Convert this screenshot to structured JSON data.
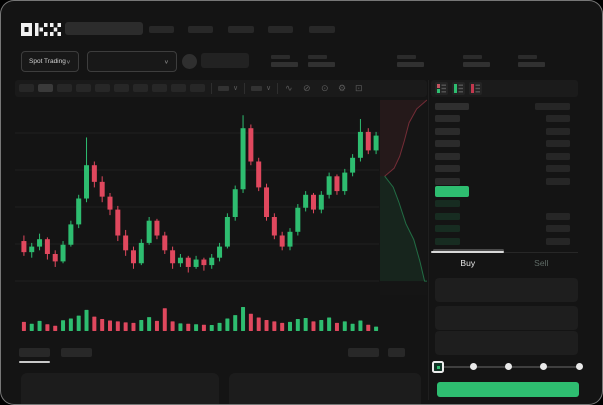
{
  "header": {
    "logo_text": "OKX",
    "spot_trading_label": "Spot Trading"
  },
  "icons": {
    "chevron_down": "∨",
    "wave": "∿",
    "draw": "⊘",
    "camera": "⊙",
    "settings": "⚙",
    "fullscreen": "⊡"
  },
  "trade": {
    "buy_label": "Buy",
    "sell_label": "Sell",
    "slider_stops": [
      0,
      25,
      50,
      75,
      100
    ],
    "slider_active_index": 0
  },
  "colors": {
    "green": "#2ebd70",
    "red": "#e0485e",
    "bid_row_tint": "rgba(46,189,112,0.14)",
    "ask_bar_gray": "#2b2b2b",
    "right_bar_gray": "#262626"
  },
  "orderbook": {
    "header_row": {
      "l": 34,
      "r": 35
    },
    "asks": [
      {
        "l": 25,
        "r": 24
      },
      {
        "l": 25,
        "r": 24
      },
      {
        "l": 25,
        "r": 24
      },
      {
        "l": 25,
        "r": 24
      },
      {
        "l": 25,
        "r": 24
      },
      {
        "l": 25,
        "r": 24
      }
    ],
    "price_row_w": 34,
    "bids": [
      {
        "l": 25,
        "r": 0
      },
      {
        "l": 25,
        "r": 24
      },
      {
        "l": 25,
        "r": 24
      },
      {
        "l": 25,
        "r": 24
      }
    ]
  },
  "chart_data": {
    "type": "candlestick",
    "note": "values in relative price units 0-100 read off chart; no axis labels visible",
    "ylim": [
      0,
      100
    ],
    "grid": true,
    "candles_ohlc": [
      [
        27,
        30,
        19,
        21
      ],
      [
        21,
        26,
        18,
        24
      ],
      [
        24,
        31,
        22,
        28
      ],
      [
        28,
        29,
        17,
        20
      ],
      [
        20,
        22,
        13,
        16
      ],
      [
        16,
        27,
        15,
        25
      ],
      [
        25,
        38,
        24,
        36
      ],
      [
        36,
        52,
        34,
        50
      ],
      [
        50,
        83,
        48,
        68
      ],
      [
        68,
        70,
        56,
        59
      ],
      [
        59,
        62,
        48,
        51
      ],
      [
        51,
        53,
        41,
        44
      ],
      [
        44,
        46,
        27,
        30
      ],
      [
        30,
        33,
        19,
        22
      ],
      [
        22,
        24,
        12,
        15
      ],
      [
        15,
        28,
        14,
        26
      ],
      [
        26,
        40,
        25,
        38
      ],
      [
        38,
        39,
        28,
        30
      ],
      [
        30,
        32,
        20,
        22
      ],
      [
        22,
        24,
        12,
        15
      ],
      [
        15,
        20,
        13,
        18
      ],
      [
        18,
        19,
        10,
        13
      ],
      [
        13,
        19,
        12,
        17
      ],
      [
        17,
        18,
        11,
        14
      ],
      [
        14,
        20,
        12,
        18
      ],
      [
        18,
        26,
        16,
        24
      ],
      [
        24,
        42,
        23,
        40
      ],
      [
        40,
        57,
        38,
        55
      ],
      [
        55,
        95,
        53,
        88
      ],
      [
        88,
        90,
        68,
        70
      ],
      [
        70,
        72,
        54,
        56
      ],
      [
        56,
        58,
        38,
        40
      ],
      [
        40,
        42,
        28,
        30
      ],
      [
        30,
        32,
        22,
        24
      ],
      [
        24,
        34,
        22,
        32
      ],
      [
        32,
        47,
        30,
        45
      ],
      [
        45,
        54,
        43,
        52
      ],
      [
        52,
        53,
        42,
        44
      ],
      [
        44,
        54,
        42,
        52
      ],
      [
        52,
        64,
        50,
        62
      ],
      [
        62,
        63,
        52,
        54
      ],
      [
        54,
        66,
        52,
        64
      ],
      [
        64,
        74,
        62,
        72
      ],
      [
        72,
        93,
        70,
        86
      ],
      [
        86,
        88,
        74,
        76
      ],
      [
        76,
        86,
        74,
        84
      ]
    ],
    "volumes": [
      38,
      30,
      42,
      28,
      22,
      45,
      52,
      64,
      88,
      60,
      50,
      44,
      40,
      36,
      34,
      46,
      58,
      42,
      95,
      40,
      32,
      30,
      28,
      26,
      25,
      34,
      52,
      66,
      100,
      72,
      56,
      46,
      40,
      34,
      38,
      50,
      54,
      40,
      46,
      56,
      34,
      40,
      30,
      44,
      26,
      18
    ],
    "depth": {
      "asks": [
        [
          0.1,
          0.4
        ],
        [
          0.3,
          0.36
        ],
        [
          0.42,
          0.3
        ],
        [
          0.52,
          0.22
        ],
        [
          0.62,
          0.13
        ],
        [
          0.78,
          0.06
        ],
        [
          1.0,
          0.015
        ]
      ],
      "bids": [
        [
          0.1,
          0.4
        ],
        [
          0.28,
          0.455
        ],
        [
          0.4,
          0.53
        ],
        [
          0.55,
          0.64
        ],
        [
          0.72,
          0.72
        ],
        [
          0.85,
          0.83
        ],
        [
          0.95,
          0.93
        ],
        [
          1.0,
          0.93
        ]
      ]
    }
  }
}
